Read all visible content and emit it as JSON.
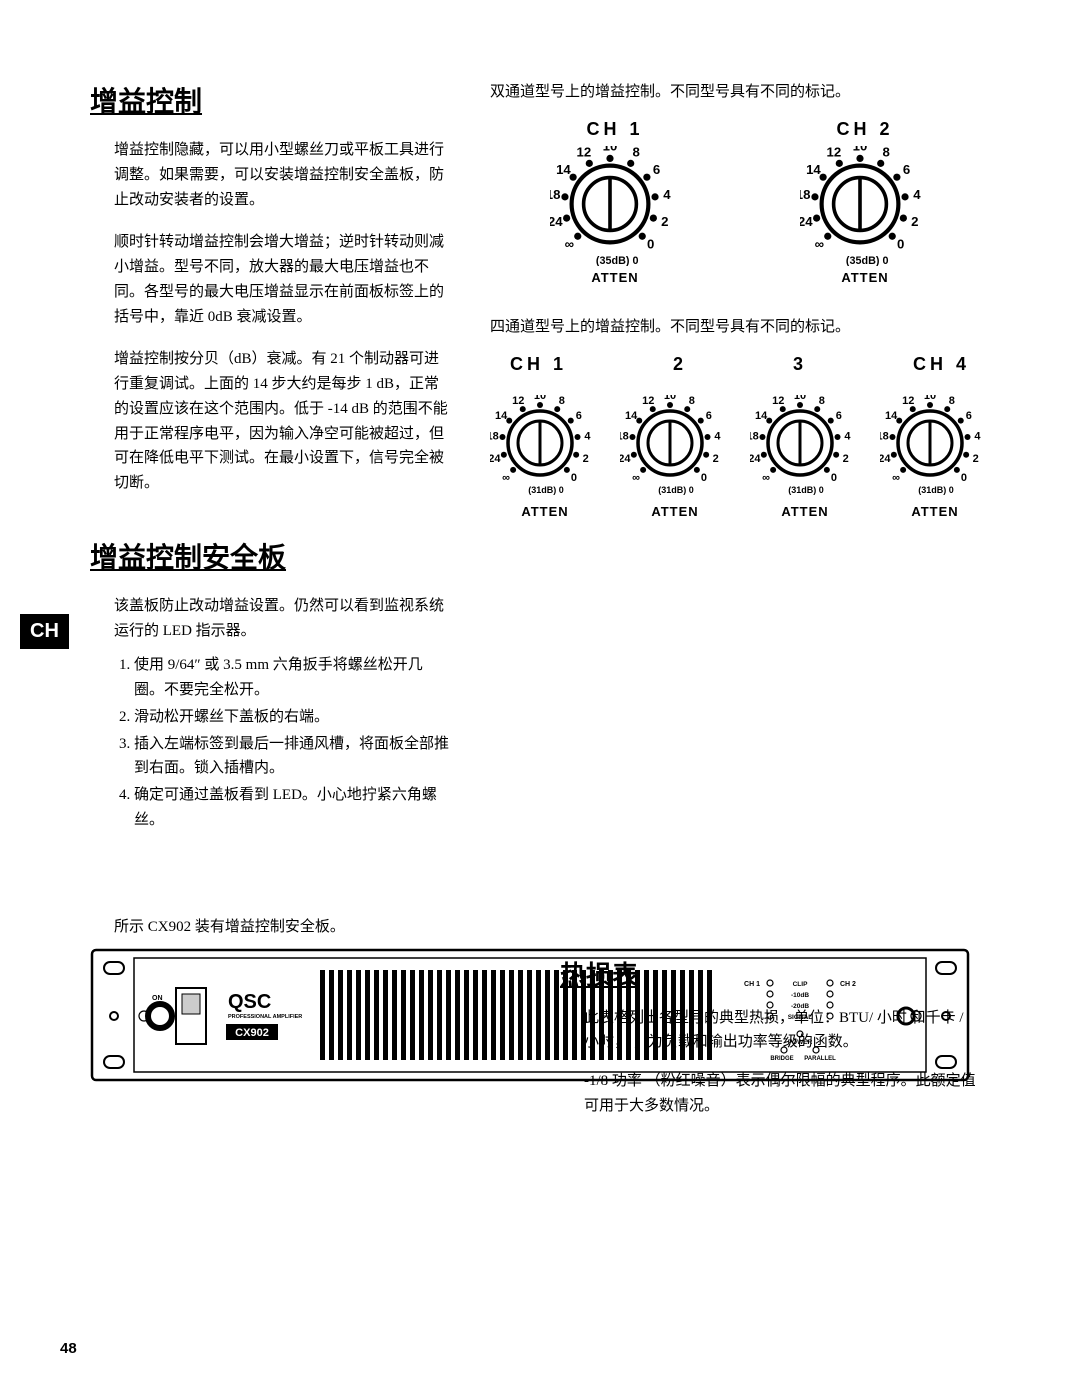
{
  "side_tab": "CH",
  "page_number": "48",
  "section1": {
    "title": "增益控制",
    "p1": "增益控制隐藏，可以用小型螺丝刀或平板工具进行调整。如果需要，可以安装增益控制安全盖板，防止改动安装者的设置。",
    "p2": "顺时针转动增益控制会增大增益；逆时针转动则减小增益。型号不同，放大器的最大电压增益也不同。各型号的最大电压增益显示在前面板标签上的括号中，靠近 0dB 衰减设置。",
    "p3": "增益控制按分贝（dB）衰减。有 21 个制动器可进行重复调试。上面的 14 步大约是每步 1 dB，正常的设置应该在这个范围内。低于 -14 dB 的范围不能用于正常程序电平，因为输入净空可能被超过，但可在降低电平下测试。在最小设置下，信号完全被切断。"
  },
  "section2": {
    "title": "增益控制安全板",
    "p1": "该盖板防止改动增益设置。仍然可以看到监视系统运行的 LED 指示器。",
    "steps": [
      "使用 9/64″ 或 3.5 mm 六角扳手将螺丝松开几圈。不要完全松开。",
      "滑动松开螺丝下盖板的右端。",
      "插入左端标签到最后一排通风槽，将面板全部推到右面。锁入插槽内。",
      "确定可通过盖板看到 LED。小心地拧紧六角螺丝。"
    ]
  },
  "right": {
    "desc2ch": "双通道型号上的增益控制。不同型号具有不同的标记。",
    "desc4ch": "四通道型号上的增益控制。不同型号具有不同的标记。",
    "ch1": "CH 1",
    "ch2": "CH 2",
    "ch4": "CH 4",
    "num2": "2",
    "num3": "3",
    "atten": "ATTEN",
    "knob2_db": "(35dB)",
    "knob4_db": "(31dB)",
    "knob_ticks": [
      "0",
      "2",
      "4",
      "6",
      "8",
      "10",
      "12",
      "14",
      "18",
      "24",
      "∞"
    ]
  },
  "heat": {
    "title": "热损表",
    "p1": "此表格列出各型号的典型热损，单位：BTU/ 小时 和千卡 / 小时， ，为负载和输出功率等级的函数。",
    "p2": "-1/8 功率 （粉红噪音）表示偶尔限幅的典型程序。此额定值可用于大多数情况。"
  },
  "caption": "所示 CX902 装有增益控制安全板。",
  "panel": {
    "brand": "QSC",
    "subbrand": "PROFESSIONAL AMPLIFIER",
    "model": "CX902",
    "on": "ON",
    "ch1": "CH 1",
    "ch2": "CH 2",
    "leds": [
      "CLIP",
      "-10dB",
      "-20dB",
      "SIGNAL"
    ],
    "power": "POWER",
    "bridge": "BRIDGE",
    "parallel": "PARALLEL"
  },
  "style": {
    "black": "#000000",
    "white": "#ffffff"
  }
}
